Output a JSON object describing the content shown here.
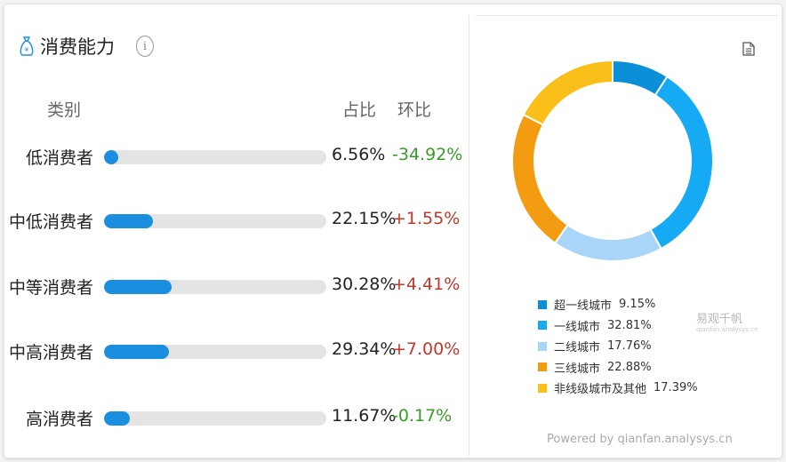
{
  "title": "消费能力",
  "headers": {
    "category": "类别",
    "share": "占比",
    "change": "环比"
  },
  "colors": {
    "bar": "#1a8fe0",
    "track": "#e4e4e4",
    "positive": "#c0392b",
    "negative": "#3a9a2a"
  },
  "rows": [
    {
      "label": "低消费者",
      "share": "6.56%",
      "value": 6.56,
      "change": "-34.92%",
      "direction": "down"
    },
    {
      "label": "中低消费者",
      "share": "22.15%",
      "value": 22.15,
      "change": "+1.55%",
      "direction": "up"
    },
    {
      "label": "中等消费者",
      "share": "30.28%",
      "value": 30.28,
      "change": "+4.41%",
      "direction": "up"
    },
    {
      "label": "中高消费者",
      "share": "29.34%",
      "value": 29.34,
      "change": "+7.00%",
      "direction": "up"
    },
    {
      "label": "高消费者",
      "share": "11.67%",
      "value": 11.67,
      "change": "-0.17%",
      "direction": "down"
    }
  ],
  "chart_data": {
    "type": "pie",
    "title": "",
    "categories": [
      "超一线城市",
      "一线城市",
      "二线城市",
      "三线城市",
      "非线级城市及其他"
    ],
    "values": [
      9.15,
      32.81,
      17.76,
      22.88,
      17.39
    ],
    "value_labels": [
      "9.15%",
      "32.81%",
      "17.76%",
      "22.88%",
      "17.39%"
    ],
    "colors": [
      "#0b8fd6",
      "#16aaf5",
      "#a9d6f8",
      "#f39c12",
      "#fbbf1a"
    ],
    "donut": true,
    "legend": "bottom"
  },
  "watermark": {
    "brand": "易观千帆",
    "sub": "qianfan.analysys.cn"
  },
  "powered": "Powered by qianfan.analysys.cn",
  "icons": {
    "title": "money-bag-icon",
    "info": "info-icon",
    "export": "document-icon"
  }
}
